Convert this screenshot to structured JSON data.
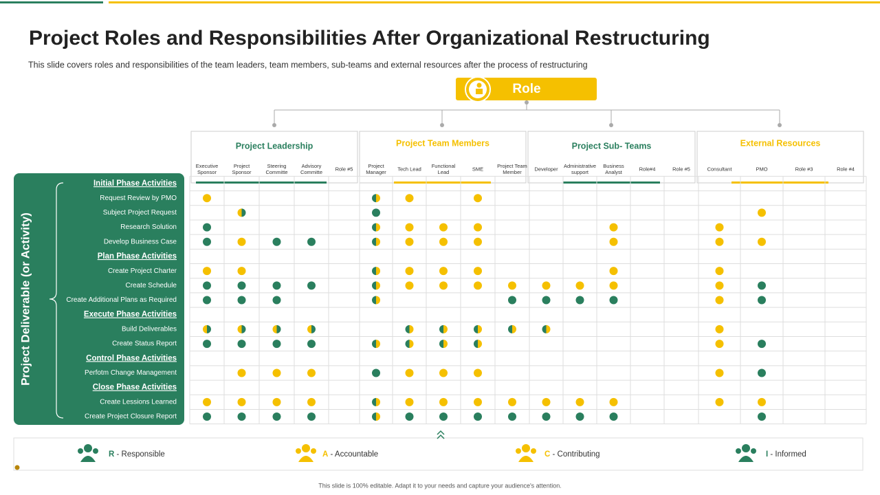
{
  "header": {
    "title": "Project Roles and Responsibilities After Organizational Restructuring",
    "subtitle": "This slide covers roles and responsibilities of the team leaders, team members, sub-teams and external resources after the process of restructuring"
  },
  "role": "Role",
  "axis_label": "Project Deliverable (or Activity)",
  "groups": [
    {
      "title": "Project Leadership",
      "color": "#2a7f5e",
      "columns": [
        "Executive Sponsor",
        "Project Sponsor",
        "Steering Committe",
        "Advisory Committe",
        "Role #5"
      ]
    },
    {
      "title": "Project Team Members",
      "color": "#f5c000",
      "columns": [
        "Project Manager",
        "Tech Lead",
        "Functional Lead",
        "SME",
        "Project Team Member"
      ]
    },
    {
      "title": "Project Sub- Teams",
      "color": "#2a7f5e",
      "columns": [
        "Developer",
        "Administrative support",
        "Business Analyst",
        "Role#4",
        "Role #5"
      ]
    },
    {
      "title": "External Resources",
      "color": "#f5c000",
      "columns": [
        "Consultant",
        "PMO",
        "Role #3",
        "Role #4"
      ]
    }
  ],
  "phases": [
    {
      "title": "Initial Phase Activities",
      "activities": [
        {
          "label": "Request Review by PMO",
          "cells": [
            "A",
            null,
            null,
            null,
            null,
            "C",
            "A",
            null,
            "A",
            null,
            null,
            null,
            null,
            null,
            null,
            null,
            null,
            null,
            null
          ]
        },
        {
          "label": "Subject Project Request",
          "cells": [
            null,
            "I",
            null,
            null,
            null,
            "R",
            null,
            null,
            null,
            null,
            null,
            null,
            null,
            null,
            null,
            null,
            "A",
            null,
            null
          ]
        },
        {
          "label": "Research Solution",
          "cells": [
            "R",
            null,
            null,
            null,
            null,
            "C",
            "A",
            "A",
            "A",
            null,
            null,
            null,
            "A",
            null,
            null,
            "A",
            null,
            null,
            null
          ]
        },
        {
          "label": "Develop Business Case",
          "cells": [
            "R",
            "A",
            "R",
            "R",
            null,
            "C",
            "A",
            "A",
            "A",
            null,
            null,
            null,
            "A",
            null,
            null,
            "A",
            "A",
            null,
            null
          ]
        }
      ]
    },
    {
      "title": "Plan Phase Activities",
      "activities": [
        {
          "label": "Create Project Charter",
          "cells": [
            "A",
            "A",
            null,
            null,
            null,
            "C",
            "A",
            "A",
            "A",
            null,
            null,
            null,
            "A",
            null,
            null,
            "A",
            null,
            null,
            null
          ]
        },
        {
          "label": "Create Schedule",
          "cells": [
            "R",
            "R",
            "R",
            "R",
            null,
            "C",
            "A",
            "A",
            "A",
            "A",
            "A",
            "A",
            "A",
            null,
            null,
            "A",
            "R",
            null,
            null
          ]
        },
        {
          "label": "Create Additional Plans as Required",
          "cells": [
            "R",
            "R",
            "R",
            null,
            null,
            "C",
            null,
            null,
            null,
            "R",
            "R",
            "R",
            "R",
            null,
            null,
            "A",
            "R",
            null,
            null
          ]
        }
      ]
    },
    {
      "title": "Execute Phase Activities",
      "activities": [
        {
          "label": "Build Deliverables",
          "cells": [
            "I",
            "I",
            "I",
            "I",
            null,
            null,
            "C",
            "C",
            "C",
            "C",
            "C",
            null,
            null,
            null,
            null,
            "A",
            null,
            null,
            null
          ]
        },
        {
          "label": "Create Status Report",
          "cells": [
            "R",
            "R",
            "R",
            "R",
            null,
            "C",
            "C",
            "C",
            "C",
            null,
            null,
            null,
            null,
            null,
            null,
            "A",
            "R",
            null,
            null
          ]
        }
      ]
    },
    {
      "title": "Control Phase Activities",
      "activities": [
        {
          "label": "Perfotm Change Management",
          "cells": [
            null,
            "A",
            "A",
            "A",
            null,
            "R",
            "A",
            "A",
            "A",
            null,
            null,
            null,
            null,
            null,
            null,
            "A",
            "R",
            null,
            null
          ]
        }
      ]
    },
    {
      "title": "Close Phase Activities",
      "activities": [
        {
          "label": "Create Lessions Learned",
          "cells": [
            "A",
            "A",
            "A",
            "A",
            null,
            "C",
            "A",
            "A",
            "A",
            "A",
            "A",
            "A",
            "A",
            null,
            null,
            "A",
            "A",
            null,
            null
          ]
        },
        {
          "label": "Create Project Closure Report",
          "cells": [
            "R",
            "R",
            "R",
            "R",
            null,
            "C",
            "R",
            "R",
            "R",
            "R",
            "R",
            "R",
            "R",
            null,
            null,
            null,
            "R",
            null,
            null
          ]
        }
      ]
    }
  ],
  "legend": [
    {
      "key": "R",
      "text": "- Responsible",
      "fill": [
        "#2a7f5e"
      ]
    },
    {
      "key": "A",
      "text": "- Accountable",
      "fill": [
        "#f5c000"
      ]
    },
    {
      "key": "C",
      "text": "- Contributing",
      "fill": [
        "#2a7f5e",
        "#f5c000"
      ]
    },
    {
      "key": "I",
      "text": "- Informed",
      "fill": [
        "#f5c000",
        "#2a7f5e"
      ]
    }
  ],
  "footer": "This slide is 100% editable. Adapt it to your needs and capture your audience's attention."
}
